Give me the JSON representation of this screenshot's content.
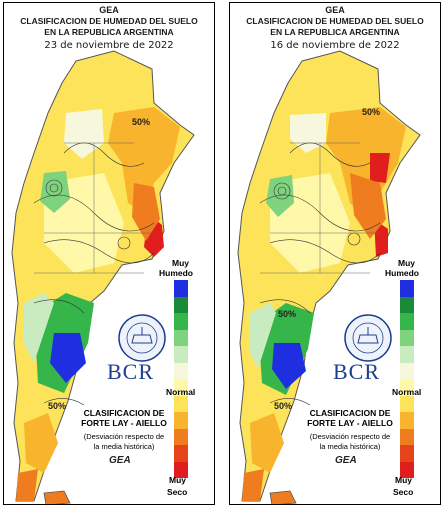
{
  "header": {
    "org": "GEA",
    "title_line1": "CLASIFICACION DE HUMEDAD DEL SUELO",
    "title_line2": "EN LA REPUBLICA ARGENTINA"
  },
  "maps": [
    {
      "date": "23 de noviembre de 2022",
      "iso_label": "50%"
    },
    {
      "date": "16 de noviembre de 2022",
      "iso_label": "50%"
    }
  ],
  "legend": {
    "top_label_1": "Muy",
    "top_label_2": "Humedo",
    "mid_label": "Normal",
    "bottom_label_1": "Muy",
    "bottom_label_2": "Seco",
    "colors": [
      "#1f2fe0",
      "#1a8a3a",
      "#36b54a",
      "#7fd37e",
      "#c8ecc0",
      "#f7f7dd",
      "#fff8a8",
      "#fde35a",
      "#f7b42c",
      "#ef7d1f",
      "#e5441a",
      "#e01e1e"
    ],
    "classification_line1": "CLASIFICACION DE",
    "classification_line2": "FORTE LAY - AIELLO",
    "description_line1": "(Desviación respecto de",
    "description_line2": "la media histórica)"
  },
  "brand": {
    "name": "BCR",
    "seal_text": "BOLSA DE COMERCIO DE ROSARIO",
    "logo_text": "GEA"
  }
}
